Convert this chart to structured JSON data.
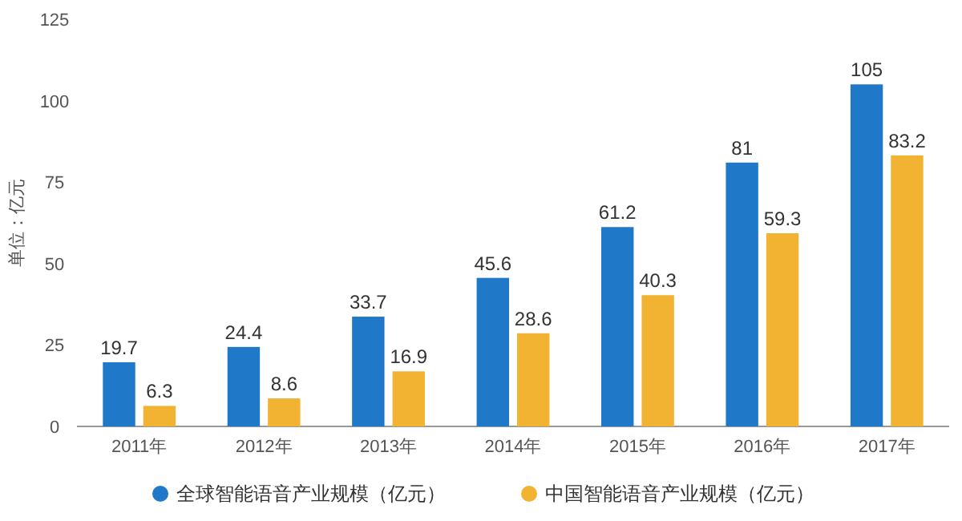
{
  "chart_data": {
    "type": "bar",
    "ylabel": "单位：亿元",
    "categories": [
      "2011年",
      "2012年",
      "2013年",
      "2014年",
      "2015年",
      "2016年",
      "2017年"
    ],
    "series": [
      {
        "name": "全球智能语音产业规模（亿元）",
        "color": "#1f78c8",
        "values": [
          19.7,
          24.4,
          33.7,
          45.6,
          61.2,
          81,
          105
        ]
      },
      {
        "name": "中国智能语音产业规模（亿元）",
        "color": "#f2b232",
        "values": [
          6.3,
          8.6,
          16.9,
          28.6,
          40.3,
          59.3,
          83.2
        ]
      }
    ],
    "ylim": [
      0,
      125
    ],
    "yticks": [
      0,
      25,
      50,
      75,
      100,
      125
    ],
    "data_labels": true,
    "legend": "bottom"
  }
}
